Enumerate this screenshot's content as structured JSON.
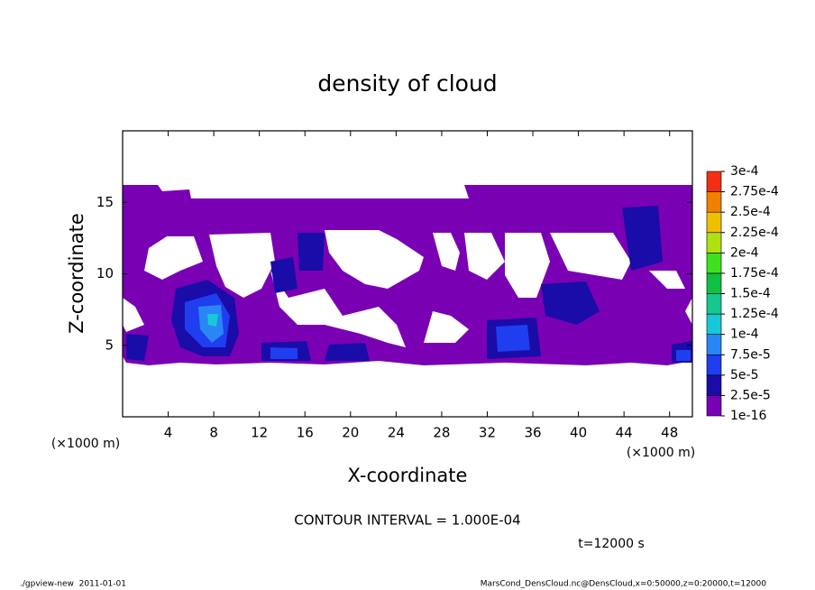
{
  "chart_data": {
    "type": "contour",
    "title": "density of cloud",
    "x_label": "X-coordinate",
    "y_label": "Z-coordinate",
    "x_unit": "(×1000 m)",
    "y_unit": "(×1000 m)",
    "xlim": [
      0,
      50
    ],
    "ylim": [
      0,
      20
    ],
    "xticks": [
      4,
      8,
      12,
      16,
      20,
      24,
      28,
      32,
      36,
      40,
      44,
      48
    ],
    "yticks": [
      5,
      10,
      15
    ],
    "levels": [
      {
        "value": 1e-16,
        "label": "1e-16"
      },
      {
        "value": 2.5e-05,
        "label": "2.5e-5"
      },
      {
        "value": 5e-05,
        "label": "5e-5"
      },
      {
        "value": 7.5e-05,
        "label": "7.5e-5"
      },
      {
        "value": 0.0001,
        "label": "1e-4"
      },
      {
        "value": 0.000125,
        "label": "1.25e-4"
      },
      {
        "value": 0.00015,
        "label": "1.5e-4"
      },
      {
        "value": 0.000175,
        "label": "1.75e-4"
      },
      {
        "value": 0.0002,
        "label": "2e-4"
      },
      {
        "value": 0.000225,
        "label": "2.25e-4"
      },
      {
        "value": 0.00025,
        "label": "2.5e-4"
      },
      {
        "value": 0.000275,
        "label": "2.75e-4"
      },
      {
        "value": 0.0003,
        "label": "3e-4"
      }
    ],
    "colors": [
      "#7a00b4",
      "#1a0ca8",
      "#1f3ef0",
      "#2a86f5",
      "#18c8d8",
      "#14c890",
      "#10c040",
      "#40e020",
      "#b0e010",
      "#f0c000",
      "#f08000",
      "#f03010"
    ],
    "contour_interval": "CONTOUR INTERVAL = 1.000E-04",
    "time": "t=12000 s",
    "footer_left": "./gpview-new  2011-01-01",
    "footer_right": "MarsCond_DensCloud.nc@DensCloud,x=0:50000,z=0:20000,t=12000"
  }
}
